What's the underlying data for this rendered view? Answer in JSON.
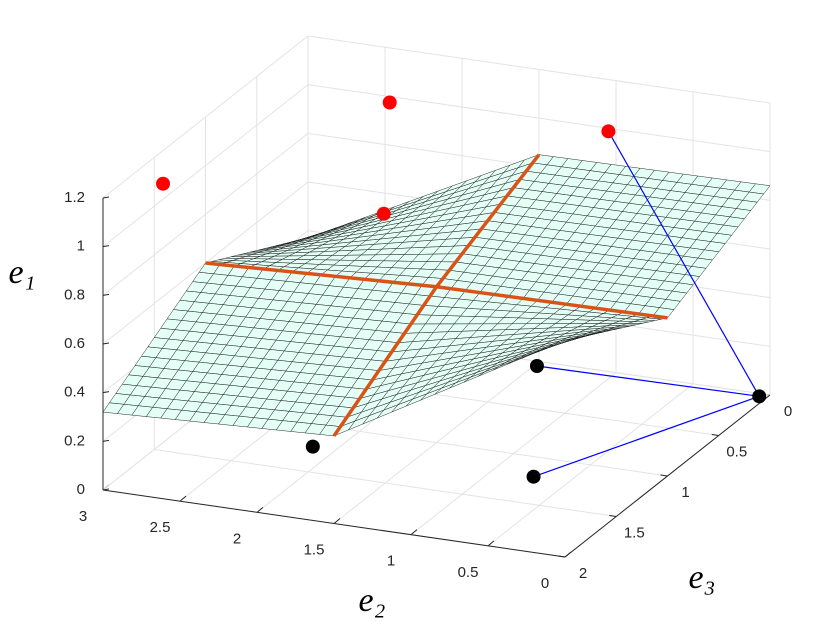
{
  "chart_data": {
    "type": "surface3d",
    "xlabel": "e₂",
    "ylabel": "e₃",
    "zlabel": "e₁",
    "xlim": [
      0,
      3
    ],
    "ylim": [
      0,
      2
    ],
    "zlim": [
      0,
      1.2
    ],
    "xticks": [
      0,
      0.5,
      1,
      1.5,
      2,
      2.5,
      3
    ],
    "yticks": [
      0,
      0.5,
      1,
      1.5,
      2
    ],
    "zticks": [
      0,
      0.2,
      0.4,
      0.6,
      0.8,
      1,
      1.2
    ],
    "grid": true,
    "surface": {
      "x": [
        0,
        1.5,
        3
      ],
      "y": [
        0,
        1,
        2
      ],
      "z": [
        [
          0.86,
          0.85,
          0.37
        ],
        [
          0.65,
          0.64,
          0.6
        ],
        [
          0.89,
          0.36,
          0.32
        ]
      ],
      "color": "#e4fff6",
      "edge_color": "#111111",
      "ridge_color": "#d95319"
    },
    "series": [
      {
        "color": "#ff0000",
        "x": [
          0.69,
          2.09,
          1.35,
          2.77
        ],
        "y": [
          0.54,
          0.57,
          1.74,
          1.76
        ],
        "z": [
          1.2,
          1.2,
          1.2,
          1.2
        ]
      },
      {
        "color": "#000000",
        "x": [
          0.05,
          1.48,
          0.73,
          2.15
        ],
        "y": [
          0.03,
          0.05,
          1.21,
          1.23
        ],
        "z": [
          0,
          0,
          0,
          0
        ]
      }
    ],
    "segments": {
      "color": "#0000ff",
      "x": [
        [
          0.69,
          0.05
        ],
        [
          1.48,
          0.05
        ],
        [
          0.73,
          0.05
        ]
      ],
      "y": [
        [
          0.54,
          0.03
        ],
        [
          0.05,
          0.03
        ],
        [
          1.21,
          0.03
        ]
      ],
      "z": [
        [
          1.2,
          0
        ],
        [
          0,
          0
        ],
        [
          0,
          0
        ]
      ]
    }
  }
}
